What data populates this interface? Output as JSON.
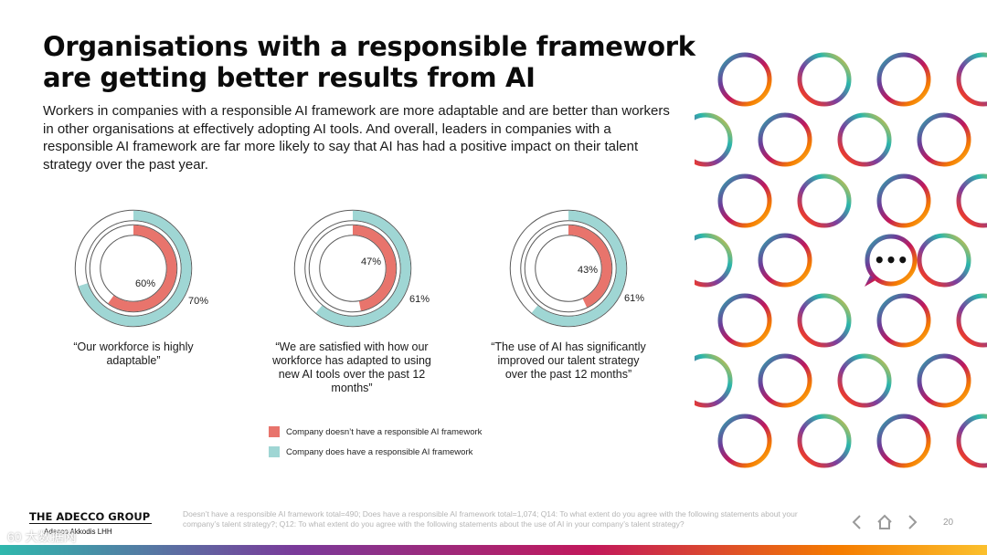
{
  "title": {
    "line1": "Organisations with a responsible framework",
    "line2": "are getting better results from AI"
  },
  "intro": "Workers in companies with a responsible AI framework are more adaptable and are better than workers in other organisations at effectively adopting AI tools. And overall, leaders in companies with a responsible AI framework are far more likely to say that AI has had a positive impact on their talent strategy over the past year.",
  "colors": {
    "without_framework": "#e8746c",
    "with_framework": "#9fd6d4"
  },
  "chart_data": [
    {
      "type": "pie",
      "series": [
        {
          "name": "Company doesn’t have a responsible AI framework",
          "values": [
            60
          ]
        },
        {
          "name": "Company does have a responsible AI framework",
          "values": [
            70
          ]
        }
      ],
      "labels": {
        "inner": "60%",
        "outer": "70%"
      },
      "caption": "“Our workforce is highly adaptable”"
    },
    {
      "type": "pie",
      "series": [
        {
          "name": "Company doesn’t have a responsible AI framework",
          "values": [
            47
          ]
        },
        {
          "name": "Company does have a responsible AI framework",
          "values": [
            61
          ]
        }
      ],
      "labels": {
        "inner": "47%",
        "outer": "61%"
      },
      "caption": "“We are satisfied with how our workforce has adapted to using new AI tools over the past 12 months”"
    },
    {
      "type": "pie",
      "series": [
        {
          "name": "Company doesn’t have a responsible AI framework",
          "values": [
            43
          ]
        },
        {
          "name": "Company does have a responsible AI framework",
          "values": [
            61
          ]
        }
      ],
      "labels": {
        "inner": "43%",
        "outer": "61%"
      },
      "caption": "“The use of AI has significantly improved our talent strategy over the past 12 months”"
    }
  ],
  "legend": {
    "without": "Company doesn’t have a responsible AI framework",
    "with": "Company does have a responsible AI framework"
  },
  "chat_bubble": "•••",
  "brand": {
    "name": "THE ADECCO GROUP",
    "sub": "Adecco   Akkodis   LHH"
  },
  "footnote": "Doesn’t have a responsible AI framework total=490; Does have a responsible AI framework total=1,074; Q14: To what extent do you agree with the following statements about your company’s talent strategy?; Q12: To what extent do you agree with the following statements about the use of AI in your company’s talent strategy?",
  "nav": {
    "prev_icon": "chevron-left-icon",
    "home_icon": "home-icon",
    "next_icon": "chevron-right-icon"
  },
  "page_number": "20",
  "watermark": "60 大数据网"
}
